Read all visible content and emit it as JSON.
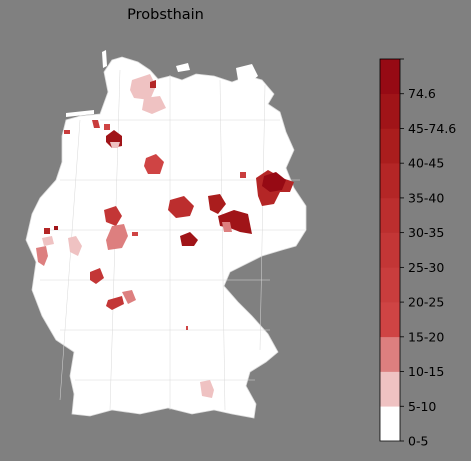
{
  "title": "Probsthain",
  "colors": {
    "background": "#808080",
    "land": "#ffffff",
    "border": "#d6d6d6"
  },
  "legend": {
    "bins": [
      {
        "label": "0-5",
        "color": "#ffffff"
      },
      {
        "label": "5-10",
        "color": "#efc2c2"
      },
      {
        "label": "10-15",
        "color": "#dd7f7f"
      },
      {
        "label": "15-20",
        "color": "#cf4444"
      },
      {
        "label": "20-25",
        "color": "#c93d3d"
      },
      {
        "label": "25-30",
        "color": "#c33636"
      },
      {
        "label": "30-35",
        "color": "#bc2e2e"
      },
      {
        "label": "35-40",
        "color": "#b42626"
      },
      {
        "label": "40-45",
        "color": "#aa1d1d"
      },
      {
        "label": "45-74.6",
        "color": "#a01418"
      },
      {
        "label": "74.6",
        "color": "#960a14"
      }
    ]
  }
}
